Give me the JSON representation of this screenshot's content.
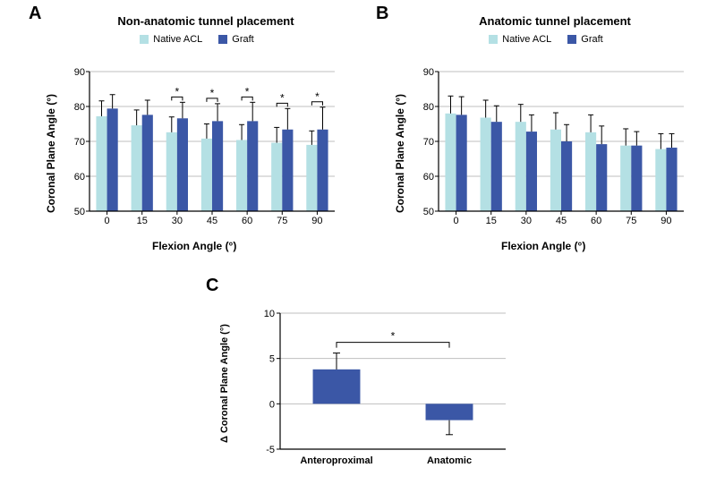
{
  "colors": {
    "native": "#b4e0e4",
    "graft": "#3b57a6",
    "axis": "#000000",
    "grid": "#bfbfbf",
    "background": "#ffffff"
  },
  "panelA": {
    "label": "A",
    "title": "Non-anatomic tunnel placement",
    "legend": {
      "native": "Native ACL",
      "graft": "Graft"
    },
    "xlabel": "Flexion Angle (°)",
    "ylabel": "Coronal Plane Angle (°)",
    "categories": [
      "0",
      "15",
      "30",
      "45",
      "60",
      "75",
      "90"
    ],
    "ylim": [
      50,
      90
    ],
    "ytick_step": 10,
    "series": [
      {
        "name": "Native ACL",
        "color_key": "native",
        "values": [
          77.2,
          74.6,
          72.6,
          70.8,
          70.4,
          69.6,
          69.0
        ],
        "err": [
          4.4,
          4.4,
          4.4,
          4.2,
          4.4,
          4.4,
          4.0
        ]
      },
      {
        "name": "Graft",
        "color_key": "graft",
        "values": [
          79.4,
          77.6,
          76.6,
          75.8,
          75.8,
          73.4,
          73.4
        ],
        "err": [
          4.0,
          4.2,
          4.6,
          5.0,
          5.4,
          6.0,
          6.4
        ]
      }
    ],
    "sig_indices": [
      2,
      3,
      4,
      5,
      6
    ],
    "label_fontsize": 20,
    "title_fontsize": 13,
    "axislabel_fontsize": 12,
    "bar_group_width": 0.62,
    "tick_fontsize": 11
  },
  "panelB": {
    "label": "B",
    "title": "Anatomic tunnel placement",
    "legend": {
      "native": "Native ACL",
      "graft": "Graft"
    },
    "xlabel": "Flexion Angle (°)",
    "ylabel": "Coronal Plane Angle (°)",
    "categories": [
      "0",
      "15",
      "30",
      "45",
      "60",
      "75",
      "90"
    ],
    "ylim": [
      50,
      90
    ],
    "ytick_step": 10,
    "series": [
      {
        "name": "Native ACL",
        "color_key": "native",
        "values": [
          78.0,
          76.8,
          75.6,
          73.4,
          72.6,
          68.8,
          67.8
        ],
        "err": [
          5.0,
          5.0,
          5.0,
          4.8,
          5.0,
          4.8,
          4.4
        ]
      },
      {
        "name": "Graft",
        "color_key": "graft",
        "values": [
          77.6,
          75.6,
          72.8,
          70.0,
          69.2,
          68.8,
          68.2
        ],
        "err": [
          5.2,
          4.6,
          4.8,
          4.8,
          5.2,
          4.0,
          4.0
        ]
      }
    ],
    "sig_indices": [],
    "label_fontsize": 20,
    "title_fontsize": 13,
    "axislabel_fontsize": 12,
    "bar_group_width": 0.62,
    "tick_fontsize": 11
  },
  "panelC": {
    "label": "C",
    "xlabel": "",
    "ylabel": "Δ Coronal Plane Angle (°)",
    "categories": [
      "Anteroproximal",
      "Anatomic"
    ],
    "ylim": [
      -5,
      10
    ],
    "yticks": [
      -5,
      0,
      5,
      10
    ],
    "series": [
      {
        "name": "delta",
        "color_key": "graft",
        "values": [
          3.8,
          -1.8
        ],
        "err": [
          1.8,
          1.6
        ]
      }
    ],
    "sig_pair": [
      0,
      1
    ],
    "label_fontsize": 20,
    "axislabel_fontsize": 11,
    "bar_width": 0.42,
    "tick_fontsize": 11
  }
}
